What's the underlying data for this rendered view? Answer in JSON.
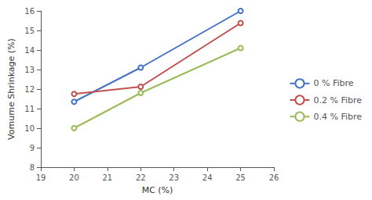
{
  "chart_data": {
    "type": "line",
    "xlabel": "MC (%)",
    "ylabel": "Vomume Shrinkage (%)",
    "xlim": [
      19,
      26
    ],
    "ylim": [
      8,
      16
    ],
    "xticks": [
      19,
      20,
      21,
      22,
      23,
      24,
      25,
      26
    ],
    "yticks": [
      8,
      9,
      10,
      11,
      12,
      13,
      14,
      15,
      16
    ],
    "grid": false,
    "legend": "right",
    "series": [
      {
        "name": "0 % Fibre",
        "color": "#4472C4",
        "x": [
          20,
          22,
          25
        ],
        "values": [
          11.35,
          13.1,
          16.0
        ]
      },
      {
        "name": "0.2 % Fibre",
        "color": "#C0504D",
        "x": [
          20,
          22,
          25
        ],
        "values": [
          11.75,
          12.12,
          15.38
        ]
      },
      {
        "name": "0.4 % Fibre",
        "color": "#9BBB59",
        "x": [
          20,
          22,
          25
        ],
        "values": [
          10.0,
          11.8,
          14.1
        ]
      }
    ]
  }
}
